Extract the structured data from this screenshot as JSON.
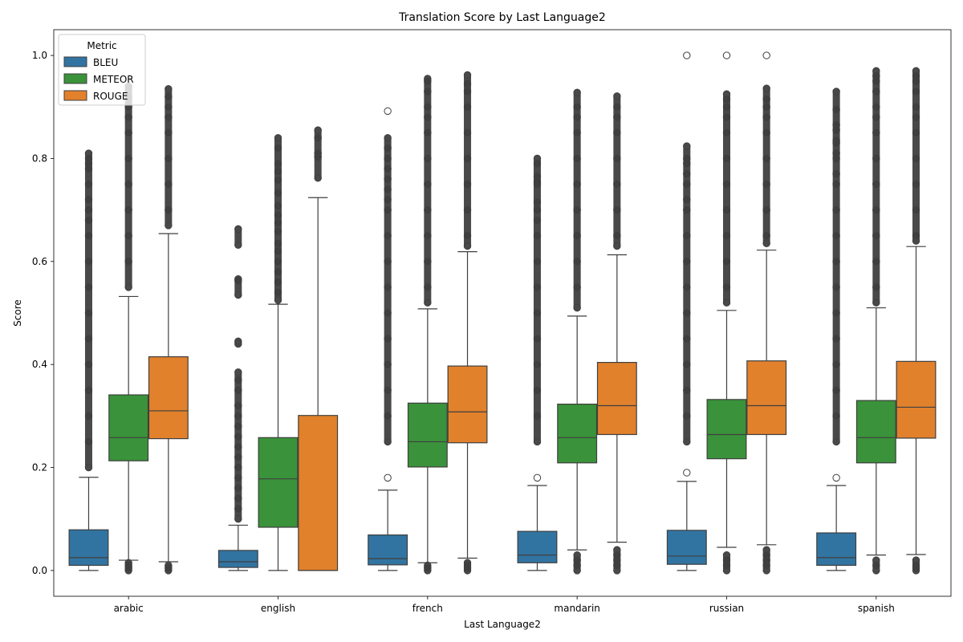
{
  "chart_data": {
    "type": "box",
    "title": "Translation Score by Last Language2",
    "xlabel": "Last Language2",
    "ylabel": "Score",
    "ylim": [
      -0.05,
      1.05
    ],
    "yticks": [
      0.0,
      0.2,
      0.4,
      0.6,
      0.8,
      1.0
    ],
    "ytick_labels": [
      "0.0",
      "0.2",
      "0.4",
      "0.6",
      "0.8",
      "1.0"
    ],
    "grid": false,
    "legend": {
      "title": "Metric",
      "placement": "top-left"
    },
    "categories": [
      "arabic",
      "english",
      "french",
      "mandarin",
      "russian",
      "spanish"
    ],
    "series": [
      {
        "name": "BLEU",
        "color": "#3274a1",
        "boxes": [
          {
            "whislo": 0.0,
            "q1": 0.01,
            "med": 0.025,
            "q3": 0.079,
            "whishi": 0.181,
            "outliers": [
              0.2,
              0.25,
              0.3,
              0.35,
              0.4,
              0.45,
              0.5,
              0.55,
              0.6,
              0.65,
              0.68,
              0.7,
              0.72,
              0.75,
              0.78,
              0.79,
              0.8,
              0.81
            ]
          },
          {
            "whislo": 0.0,
            "q1": 0.006,
            "med": 0.017,
            "q3": 0.039,
            "whishi": 0.088,
            "outliers": [
              0.1,
              0.12,
              0.14,
              0.16,
              0.18,
              0.2,
              0.22,
              0.24,
              0.26,
              0.28,
              0.3,
              0.32,
              0.35,
              0.37,
              0.385,
              0.44,
              0.445,
              0.535,
              0.563,
              0.566,
              0.632,
              0.663
            ]
          },
          {
            "whislo": 0.0,
            "q1": 0.011,
            "med": 0.023,
            "q3": 0.069,
            "whishi": 0.156,
            "outliers": [
              0.18,
              0.25,
              0.3,
              0.35,
              0.4,
              0.45,
              0.5,
              0.55,
              0.6,
              0.65,
              0.7,
              0.72,
              0.74,
              0.76,
              0.78,
              0.8,
              0.82,
              0.84,
              0.892
            ]
          },
          {
            "whislo": 0.0,
            "q1": 0.015,
            "med": 0.03,
            "q3": 0.076,
            "whishi": 0.165,
            "outliers": [
              0.18,
              0.25,
              0.3,
              0.35,
              0.4,
              0.45,
              0.5,
              0.55,
              0.6,
              0.65,
              0.68,
              0.7,
              0.715,
              0.75,
              0.755,
              0.765,
              0.79,
              0.8
            ]
          },
          {
            "whislo": 0.0,
            "q1": 0.012,
            "med": 0.028,
            "q3": 0.078,
            "whishi": 0.173,
            "outliers": [
              0.19,
              0.25,
              0.3,
              0.35,
              0.4,
              0.45,
              0.5,
              0.55,
              0.6,
              0.65,
              0.7,
              0.72,
              0.75,
              0.77,
              0.79,
              0.8,
              0.824,
              1.0
            ]
          },
          {
            "whislo": 0.0,
            "q1": 0.01,
            "med": 0.025,
            "q3": 0.073,
            "whishi": 0.165,
            "outliers": [
              0.18,
              0.25,
              0.3,
              0.35,
              0.4,
              0.45,
              0.5,
              0.55,
              0.6,
              0.65,
              0.7,
              0.75,
              0.77,
              0.8,
              0.81,
              0.83,
              0.835,
              0.855,
              0.865,
              0.895,
              0.93
            ]
          }
        ]
      },
      {
        "name": "METEOR",
        "color": "#3a923a",
        "boxes": [
          {
            "whislo": 0.02,
            "q1": 0.213,
            "med": 0.258,
            "q3": 0.341,
            "whishi": 0.532,
            "outliers": [
              0.0,
              0.005,
              0.01,
              0.015,
              0.55,
              0.6,
              0.65,
              0.7,
              0.75,
              0.8,
              0.85,
              0.88,
              0.9,
              0.92,
              0.94
            ]
          },
          {
            "whislo": 0.0,
            "q1": 0.084,
            "med": 0.178,
            "q3": 0.258,
            "whishi": 0.517,
            "outliers": [
              0.525,
              0.54,
              0.56,
              0.58,
              0.6,
              0.62,
              0.635,
              0.658,
              0.675,
              0.69,
              0.708,
              0.733,
              0.758,
              0.775,
              0.79,
              0.82,
              0.84
            ]
          },
          {
            "whislo": 0.015,
            "q1": 0.201,
            "med": 0.25,
            "q3": 0.325,
            "whishi": 0.508,
            "outliers": [
              0.0,
              0.005,
              0.01,
              0.52,
              0.55,
              0.6,
              0.65,
              0.7,
              0.75,
              0.8,
              0.85,
              0.88,
              0.9,
              0.93,
              0.95,
              0.955
            ]
          },
          {
            "whislo": 0.04,
            "q1": 0.209,
            "med": 0.258,
            "q3": 0.323,
            "whishi": 0.494,
            "outliers": [
              0.0,
              0.01,
              0.02,
              0.03,
              0.51,
              0.55,
              0.6,
              0.65,
              0.7,
              0.75,
              0.8,
              0.85,
              0.88,
              0.9,
              0.928
            ]
          },
          {
            "whislo": 0.045,
            "q1": 0.217,
            "med": 0.264,
            "q3": 0.332,
            "whishi": 0.505,
            "outliers": [
              0.0,
              0.01,
              0.02,
              0.03,
              0.52,
              0.55,
              0.6,
              0.65,
              0.7,
              0.75,
              0.8,
              0.85,
              0.88,
              0.9,
              0.915,
              0.925,
              1.0
            ]
          },
          {
            "whislo": 0.03,
            "q1": 0.209,
            "med": 0.258,
            "q3": 0.33,
            "whishi": 0.51,
            "outliers": [
              0.0,
              0.01,
              0.02,
              0.52,
              0.55,
              0.6,
              0.65,
              0.7,
              0.75,
              0.8,
              0.85,
              0.88,
              0.9,
              0.93,
              0.95,
              0.96,
              0.97
            ]
          }
        ]
      },
      {
        "name": "ROUGE",
        "color": "#e1812c",
        "boxes": [
          {
            "whislo": 0.017,
            "q1": 0.256,
            "med": 0.31,
            "q3": 0.415,
            "whishi": 0.654,
            "outliers": [
              0.0,
              0.005,
              0.01,
              0.67,
              0.7,
              0.75,
              0.8,
              0.85,
              0.88,
              0.9,
              0.92,
              0.935
            ]
          },
          {
            "whislo": 0.0,
            "q1": 0.0,
            "med": 0.0,
            "q3": 0.301,
            "whishi": 0.724,
            "outliers": [
              0.762,
              0.803,
              0.81,
              0.84,
              0.855
            ]
          },
          {
            "whislo": 0.024,
            "q1": 0.248,
            "med": 0.308,
            "q3": 0.397,
            "whishi": 0.619,
            "outliers": [
              0.0,
              0.005,
              0.01,
              0.015,
              0.63,
              0.65,
              0.7,
              0.75,
              0.8,
              0.85,
              0.9,
              0.93,
              0.945,
              0.962
            ]
          },
          {
            "whislo": 0.055,
            "q1": 0.264,
            "med": 0.32,
            "q3": 0.404,
            "whishi": 0.613,
            "outliers": [
              0.0,
              0.01,
              0.02,
              0.03,
              0.04,
              0.63,
              0.65,
              0.7,
              0.75,
              0.8,
              0.85,
              0.88,
              0.9,
              0.921
            ]
          },
          {
            "whislo": 0.05,
            "q1": 0.264,
            "med": 0.32,
            "q3": 0.407,
            "whishi": 0.622,
            "outliers": [
              0.0,
              0.01,
              0.02,
              0.03,
              0.04,
              0.635,
              0.65,
              0.7,
              0.75,
              0.8,
              0.85,
              0.88,
              0.9,
              0.915,
              0.936,
              1.0
            ]
          },
          {
            "whislo": 0.031,
            "q1": 0.257,
            "med": 0.317,
            "q3": 0.406,
            "whishi": 0.629,
            "outliers": [
              0.0,
              0.005,
              0.01,
              0.02,
              0.64,
              0.65,
              0.7,
              0.75,
              0.8,
              0.85,
              0.88,
              0.9,
              0.93,
              0.95,
              0.96,
              0.97
            ]
          }
        ]
      }
    ]
  }
}
